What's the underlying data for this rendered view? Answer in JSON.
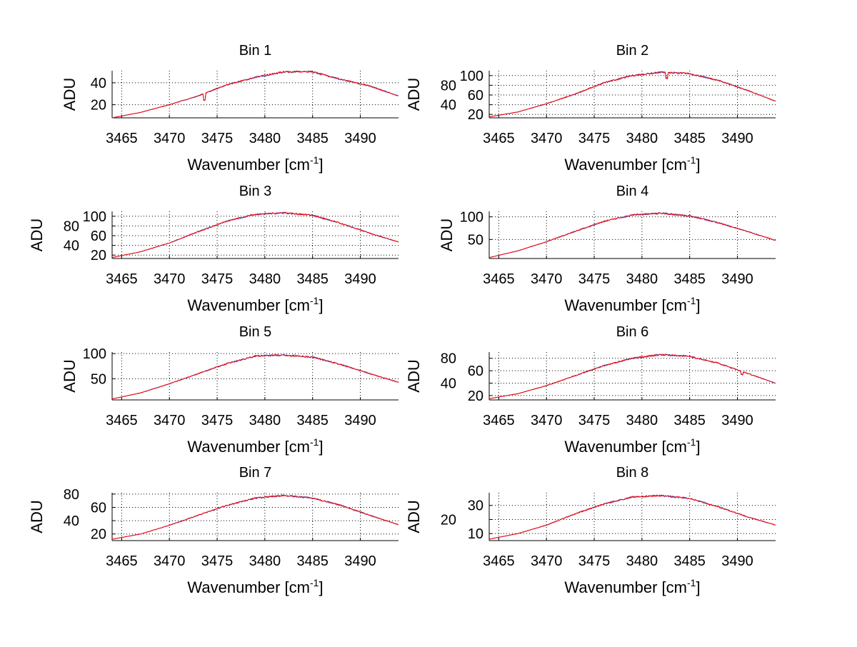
{
  "chart_data": [
    {
      "type": "line",
      "title": "Bin 1",
      "xlabel": "Wavenumber [cm",
      "xlabel_sup": "-1",
      "xlabel_end": "]",
      "ylabel": "ADU",
      "xlim": [
        3464,
        3494
      ],
      "ylim": [
        8,
        51
      ],
      "xticks": [
        3465,
        3470,
        3475,
        3480,
        3485,
        3490
      ],
      "yticks": [
        20,
        40
      ],
      "grid": true,
      "x": [
        3464,
        3467,
        3470,
        3473,
        3476,
        3479,
        3482,
        3485,
        3488,
        3491,
        3494
      ],
      "series": [
        {
          "name": "spectrum-blue",
          "color": "#3050c0",
          "values": [
            8,
            13,
            20,
            28,
            38,
            45,
            50,
            50,
            43,
            37,
            28
          ]
        },
        {
          "name": "spectrum-red",
          "color": "#ff0000",
          "values": [
            8,
            13,
            20,
            28,
            38,
            45,
            50,
            50,
            43,
            37,
            28
          ]
        }
      ],
      "annotations": [
        {
          "type": "dip",
          "x": 3473.7,
          "depth": 6
        }
      ]
    },
    {
      "type": "line",
      "title": "Bin 2",
      "xlabel": "Wavenumber [cm",
      "xlabel_sup": "-1",
      "xlabel_end": "]",
      "ylabel": "ADU",
      "xlim": [
        3464,
        3494
      ],
      "ylim": [
        13,
        110
      ],
      "xticks": [
        3465,
        3470,
        3475,
        3480,
        3485,
        3490
      ],
      "yticks": [
        20,
        40,
        60,
        80,
        100
      ],
      "grid": true,
      "x": [
        3464,
        3467,
        3470,
        3473,
        3476,
        3479,
        3482,
        3485,
        3488,
        3491,
        3494
      ],
      "series": [
        {
          "name": "spectrum-blue",
          "color": "#3050c0",
          "values": [
            15,
            25,
            42,
            62,
            85,
            100,
            107,
            104,
            90,
            70,
            47
          ]
        },
        {
          "name": "spectrum-red",
          "color": "#ff0000",
          "values": [
            15,
            25,
            42,
            62,
            85,
            100,
            107,
            104,
            90,
            70,
            47
          ]
        }
      ],
      "annotations": [
        {
          "type": "dip",
          "x": 3482.6,
          "depth": 12
        }
      ]
    },
    {
      "type": "line",
      "title": "Bin 3",
      "xlabel": "Wavenumber [cm",
      "xlabel_sup": "-1",
      "xlabel_end": "]",
      "ylabel": "ADU",
      "xlim": [
        3464,
        3494
      ],
      "ylim": [
        13,
        110
      ],
      "xticks": [
        3465,
        3470,
        3475,
        3480,
        3485,
        3490
      ],
      "yticks": [
        20,
        40,
        60,
        80,
        100
      ],
      "grid": true,
      "x": [
        3464,
        3467,
        3470,
        3473,
        3476,
        3479,
        3482,
        3485,
        3488,
        3491,
        3494
      ],
      "series": [
        {
          "name": "spectrum-blue",
          "color": "#3050c0",
          "values": [
            15,
            27,
            45,
            68,
            90,
            104,
            107,
            102,
            85,
            65,
            47
          ]
        },
        {
          "name": "spectrum-red",
          "color": "#ff0000",
          "values": [
            15,
            27,
            45,
            68,
            90,
            104,
            107,
            102,
            85,
            65,
            47
          ]
        }
      ],
      "annotations": []
    },
    {
      "type": "line",
      "title": "Bin 4",
      "xlabel": "Wavenumber [cm",
      "xlabel_sup": "-1",
      "xlabel_end": "]",
      "ylabel": "ADU",
      "xlim": [
        3464,
        3494
      ],
      "ylim": [
        8,
        112
      ],
      "xticks": [
        3465,
        3470,
        3475,
        3480,
        3485,
        3490
      ],
      "yticks": [
        50,
        100
      ],
      "grid": true,
      "x": [
        3464,
        3467,
        3470,
        3473,
        3476,
        3479,
        3482,
        3485,
        3488,
        3491,
        3494
      ],
      "series": [
        {
          "name": "spectrum-blue",
          "color": "#3050c0",
          "values": [
            10,
            25,
            45,
            68,
            90,
            104,
            108,
            102,
            87,
            68,
            48
          ]
        },
        {
          "name": "spectrum-red",
          "color": "#ff0000",
          "values": [
            10,
            25,
            45,
            68,
            90,
            104,
            108,
            102,
            87,
            68,
            48
          ]
        }
      ],
      "annotations": []
    },
    {
      "type": "line",
      "title": "Bin 5",
      "xlabel": "Wavenumber [cm",
      "xlabel_sup": "-1",
      "xlabel_end": "]",
      "ylabel": "ADU",
      "xlim": [
        3464,
        3494
      ],
      "ylim": [
        8,
        103
      ],
      "xticks": [
        3465,
        3470,
        3475,
        3480,
        3485,
        3490
      ],
      "yticks": [
        50,
        100
      ],
      "grid": true,
      "x": [
        3464,
        3467,
        3470,
        3473,
        3476,
        3479,
        3482,
        3485,
        3488,
        3491,
        3494
      ],
      "series": [
        {
          "name": "spectrum-blue",
          "color": "#3050c0",
          "values": [
            10,
            22,
            40,
            60,
            80,
            95,
            97,
            93,
            78,
            60,
            43
          ]
        },
        {
          "name": "spectrum-red",
          "color": "#ff0000",
          "values": [
            10,
            22,
            40,
            60,
            80,
            95,
            97,
            93,
            78,
            60,
            43
          ]
        }
      ],
      "annotations": []
    },
    {
      "type": "line",
      "title": "Bin 6",
      "xlabel": "Wavenumber [cm",
      "xlabel_sup": "-1",
      "xlabel_end": "]",
      "ylabel": "ADU",
      "xlim": [
        3464,
        3494
      ],
      "ylim": [
        13,
        90
      ],
      "xticks": [
        3465,
        3470,
        3475,
        3480,
        3485,
        3490
      ],
      "yticks": [
        20,
        40,
        60,
        80
      ],
      "grid": true,
      "x": [
        3464,
        3467,
        3470,
        3473,
        3476,
        3479,
        3482,
        3485,
        3488,
        3491,
        3494
      ],
      "series": [
        {
          "name": "spectrum-blue",
          "color": "#3050c0",
          "values": [
            15,
            23,
            36,
            52,
            68,
            80,
            86,
            83,
            72,
            56,
            40
          ]
        },
        {
          "name": "spectrum-red",
          "color": "#ff0000",
          "values": [
            15,
            23,
            36,
            52,
            68,
            80,
            86,
            83,
            72,
            56,
            40
          ]
        }
      ],
      "annotations": [
        {
          "type": "dip",
          "x": 3490.5,
          "depth": 5
        }
      ]
    },
    {
      "type": "line",
      "title": "Bin 7",
      "xlabel": "Wavenumber [cm",
      "xlabel_sup": "-1",
      "xlabel_end": "]",
      "ylabel": "ADU",
      "xlim": [
        3464,
        3494
      ],
      "ylim": [
        10,
        82
      ],
      "xticks": [
        3465,
        3470,
        3475,
        3480,
        3485,
        3490
      ],
      "yticks": [
        20,
        40,
        60,
        80
      ],
      "grid": true,
      "x": [
        3464,
        3467,
        3470,
        3473,
        3476,
        3479,
        3482,
        3485,
        3488,
        3491,
        3494
      ],
      "series": [
        {
          "name": "spectrum-blue",
          "color": "#3050c0",
          "values": [
            12,
            20,
            33,
            48,
            63,
            74,
            78,
            74,
            63,
            48,
            34
          ]
        },
        {
          "name": "spectrum-red",
          "color": "#ff0000",
          "values": [
            12,
            20,
            33,
            48,
            63,
            74,
            78,
            74,
            63,
            48,
            34
          ]
        }
      ],
      "annotations": []
    },
    {
      "type": "line",
      "title": "Bin 8",
      "xlabel": "Wavenumber [cm",
      "xlabel_sup": "-1",
      "xlabel_end": "]",
      "ylabel": "ADU",
      "xlim": [
        3464,
        3494
      ],
      "ylim": [
        5,
        39
      ],
      "xticks": [
        3465,
        3470,
        3475,
        3480,
        3485,
        3490
      ],
      "yticks": [
        10,
        20,
        30
      ],
      "grid": true,
      "x": [
        3464,
        3467,
        3470,
        3473,
        3476,
        3479,
        3482,
        3485,
        3488,
        3491,
        3494
      ],
      "series": [
        {
          "name": "spectrum-blue",
          "color": "#3050c0",
          "values": [
            6,
            10,
            16,
            24,
            31,
            36,
            37,
            35,
            29,
            22,
            16
          ]
        },
        {
          "name": "spectrum-red",
          "color": "#ff0000",
          "values": [
            6,
            10,
            16,
            24,
            31,
            36,
            37,
            35,
            29,
            22,
            16
          ]
        }
      ],
      "annotations": []
    }
  ]
}
